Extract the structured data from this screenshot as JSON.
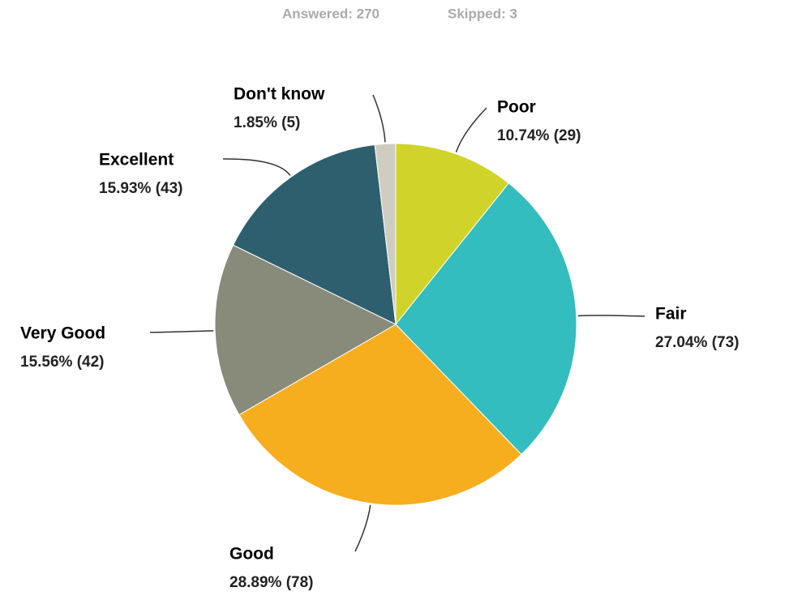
{
  "answered": "Answered: 270",
  "skipped": "Skipped: 3",
  "chart_data": {
    "type": "pie",
    "categories": [
      "Poor",
      "Fair",
      "Good",
      "Very Good",
      "Excellent",
      "Don't know"
    ],
    "values": [
      10.74,
      27.04,
      28.89,
      15.56,
      15.93,
      1.85
    ],
    "value_labels": [
      "10.74% (29)",
      "27.04% (73)",
      "28.89% (78)",
      "15.56% (42)",
      "15.93% (43)",
      "1.85% (5)"
    ],
    "colors": [
      "#d0d42a",
      "#33bdbf",
      "#f6ae1f",
      "#888a7a",
      "#2e5f6e",
      "#cfccc2"
    ]
  }
}
